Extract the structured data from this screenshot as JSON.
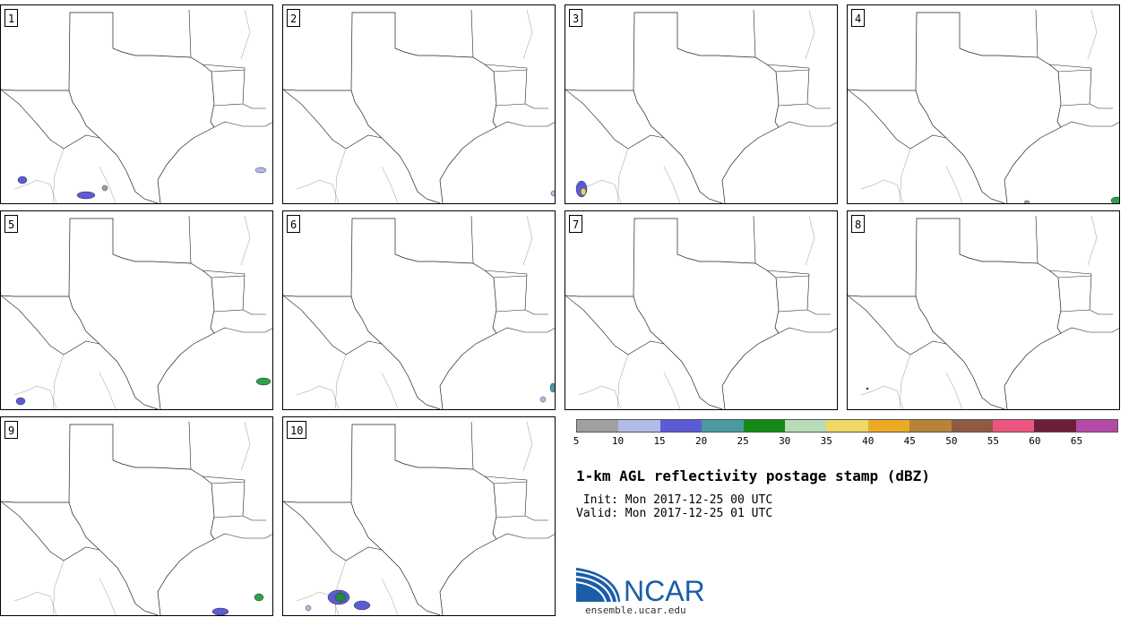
{
  "panels": [
    {
      "label": "1",
      "blobs": [
        {
          "cx": 24,
          "cy": 195,
          "rx": 5,
          "ry": 4,
          "c": "#5b5bd6"
        },
        {
          "cx": 95,
          "cy": 212,
          "rx": 10,
          "ry": 4,
          "c": "#5b5bd6"
        },
        {
          "cx": 116,
          "cy": 204,
          "rx": 3,
          "ry": 3,
          "c": "#a0a0a0"
        },
        {
          "cx": 290,
          "cy": 184,
          "rx": 6,
          "ry": 3,
          "c": "#b0bce8"
        }
      ]
    },
    {
      "label": "2",
      "blobs": [
        {
          "cx": 302,
          "cy": 210,
          "rx": 3,
          "ry": 3,
          "c": "#b0bce8"
        }
      ]
    },
    {
      "label": "3",
      "blobs": [
        {
          "cx": 18,
          "cy": 205,
          "rx": 6,
          "ry": 9,
          "c": "#5b5bd6"
        },
        {
          "cx": 20,
          "cy": 208,
          "rx": 3,
          "ry": 4,
          "c": "#e8d65a"
        }
      ]
    },
    {
      "label": "4",
      "blobs": [
        {
          "cx": 200,
          "cy": 220,
          "rx": 3,
          "ry": 2,
          "c": "#a0a0a0"
        },
        {
          "cx": 300,
          "cy": 218,
          "rx": 6,
          "ry": 4,
          "c": "#2fa050"
        }
      ]
    },
    {
      "label": "5",
      "blobs": [
        {
          "cx": 22,
          "cy": 212,
          "rx": 5,
          "ry": 4,
          "c": "#5b5bd6"
        },
        {
          "cx": 293,
          "cy": 190,
          "rx": 8,
          "ry": 4,
          "c": "#2fa050"
        }
      ]
    },
    {
      "label": "6",
      "blobs": [
        {
          "cx": 290,
          "cy": 210,
          "rx": 3,
          "ry": 3,
          "c": "#b0bce8"
        },
        {
          "cx": 301,
          "cy": 197,
          "rx": 3,
          "ry": 5,
          "c": "#4a9aa0"
        }
      ]
    },
    {
      "label": "7",
      "blobs": []
    },
    {
      "label": "8",
      "blobs": [
        {
          "cx": 22,
          "cy": 198,
          "rx": 1,
          "ry": 1,
          "c": "#000000"
        }
      ]
    },
    {
      "label": "9",
      "blobs": [
        {
          "cx": 245,
          "cy": 217,
          "rx": 9,
          "ry": 4,
          "c": "#5b5bd6"
        },
        {
          "cx": 288,
          "cy": 201,
          "rx": 5,
          "ry": 4,
          "c": "#2fa050"
        }
      ]
    },
    {
      "label": "10",
      "blobs": [
        {
          "cx": 345,
          "cy": 196,
          "rx": 20,
          "ry": 8,
          "c": "#5b5bd6"
        },
        {
          "cx": 360,
          "cy": 200,
          "rx": 12,
          "ry": 5,
          "c": "#2fa050"
        },
        {
          "cx": 62,
          "cy": 201,
          "rx": 12,
          "ry": 8,
          "c": "#5b5bd6"
        },
        {
          "cx": 64,
          "cy": 201,
          "rx": 6,
          "ry": 5,
          "c": "#1f8a3c"
        },
        {
          "cx": 88,
          "cy": 210,
          "rx": 9,
          "ry": 5,
          "c": "#5b5bd6"
        },
        {
          "cx": 28,
          "cy": 213,
          "rx": 3,
          "ry": 3,
          "c": "#b0bce8"
        }
      ]
    }
  ],
  "colorbar": {
    "colors": [
      "#a0a0a0",
      "#b0bce8",
      "#5b5bd6",
      "#4a9aa0",
      "#138a13",
      "#b8dcb8",
      "#ecd863",
      "#ebaa23",
      "#b8823a",
      "#8e5a44",
      "#ec5580",
      "#6e1e3a",
      "#b44aa8"
    ],
    "ticks": [
      "5",
      "10",
      "15",
      "20",
      "25",
      "30",
      "35",
      "40",
      "45",
      "50",
      "55",
      "60",
      "65"
    ]
  },
  "title": "1-km AGL reflectivity postage stamp (dBZ)",
  "init_text": " Init: Mon 2017-12-25 00 UTC",
  "valid_text": "Valid: Mon 2017-12-25 01 UTC",
  "logo": {
    "text": "NCAR",
    "url": "ensemble.ucar.edu",
    "brand_color": "#1a5ea8"
  }
}
